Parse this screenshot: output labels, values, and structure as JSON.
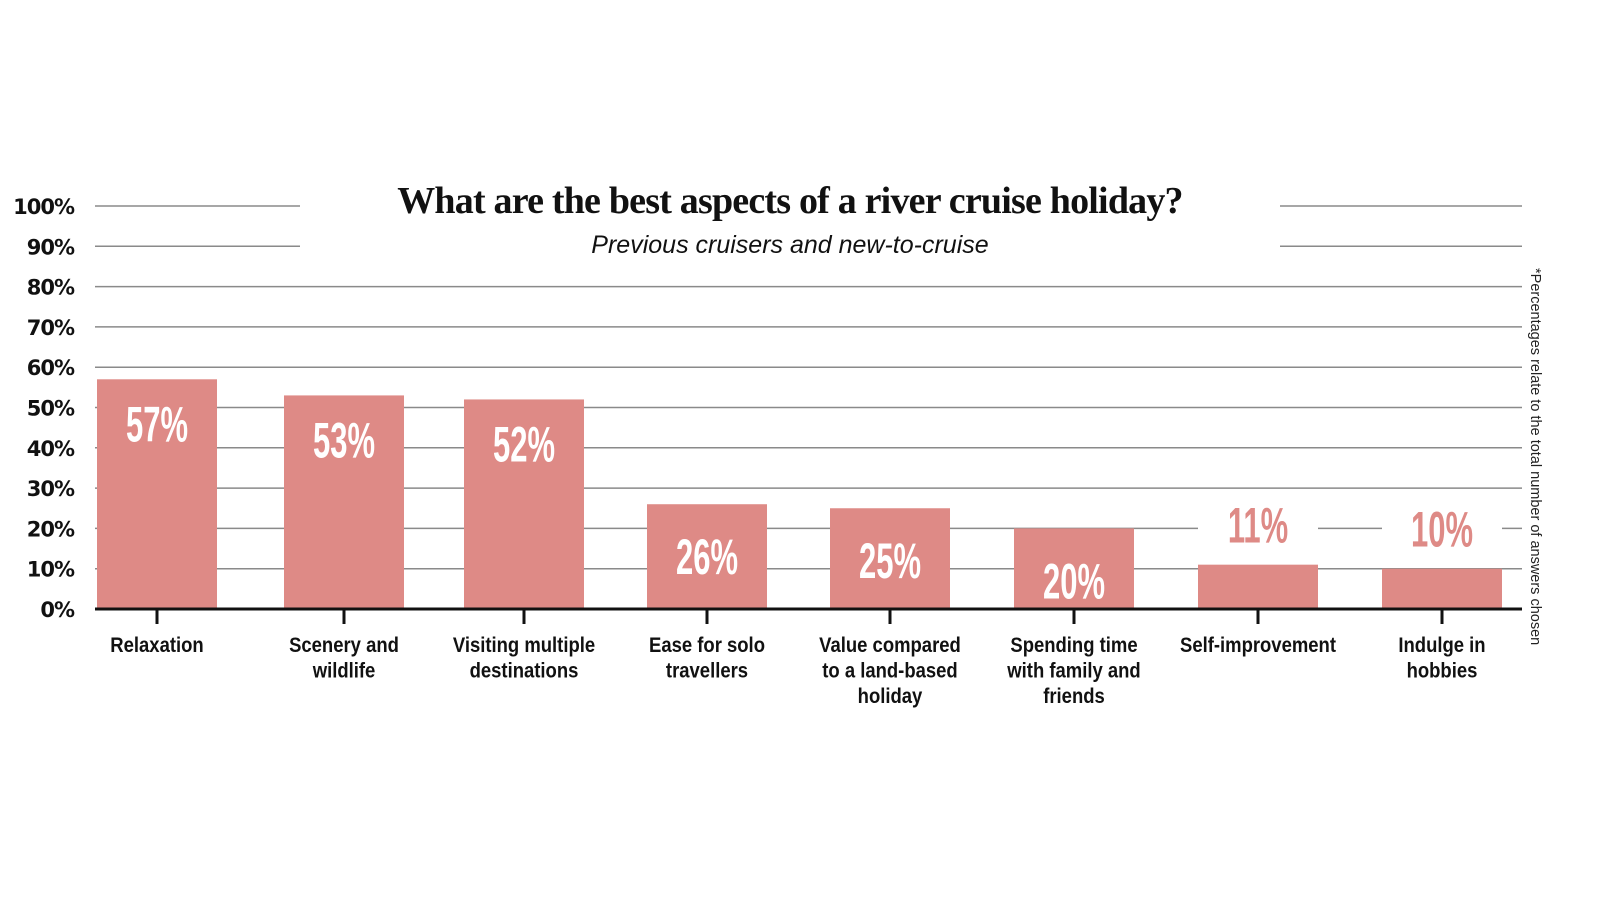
{
  "chart_data": {
    "type": "bar",
    "title": "What are the best aspects of a river cruise holiday?",
    "subtitle": "Previous cruisers and new-to-cruise",
    "footnote": "*Percentages relate to the total number of answers chosen",
    "categories": [
      "Relaxation",
      "Scenery and wildlife",
      "Visiting multiple destinations",
      "Ease for solo travellers",
      "Value compared to a land-based holiday",
      "Spending time with family and friends",
      "Self-improvement",
      "Indulge in hobbies"
    ],
    "category_lines": [
      [
        "Relaxation"
      ],
      [
        "Scenery and",
        "wildlife"
      ],
      [
        "Visiting multiple",
        "destinations"
      ],
      [
        "Ease for solo",
        "travellers"
      ],
      [
        "Value compared",
        "to a land-based",
        "holiday"
      ],
      [
        "Spending time",
        "with family and",
        "friends"
      ],
      [
        "Self-improvement"
      ],
      [
        "Indulge in",
        "hobbies"
      ]
    ],
    "values": [
      57,
      53,
      52,
      26,
      25,
      20,
      11,
      10
    ],
    "data_labels": [
      "57%",
      "53%",
      "52%",
      "26%",
      "25%",
      "20%",
      "11%",
      "10%"
    ],
    "ylim": [
      0,
      100
    ],
    "yticks": [
      "0%",
      "10%",
      "20%",
      "30%",
      "40%",
      "50%",
      "60%",
      "70%",
      "80%",
      "90%",
      "100%"
    ],
    "grid": true,
    "colors": {
      "bar": "#de8a86",
      "grid": "#8a8a8a",
      "axis": "#111111"
    }
  }
}
